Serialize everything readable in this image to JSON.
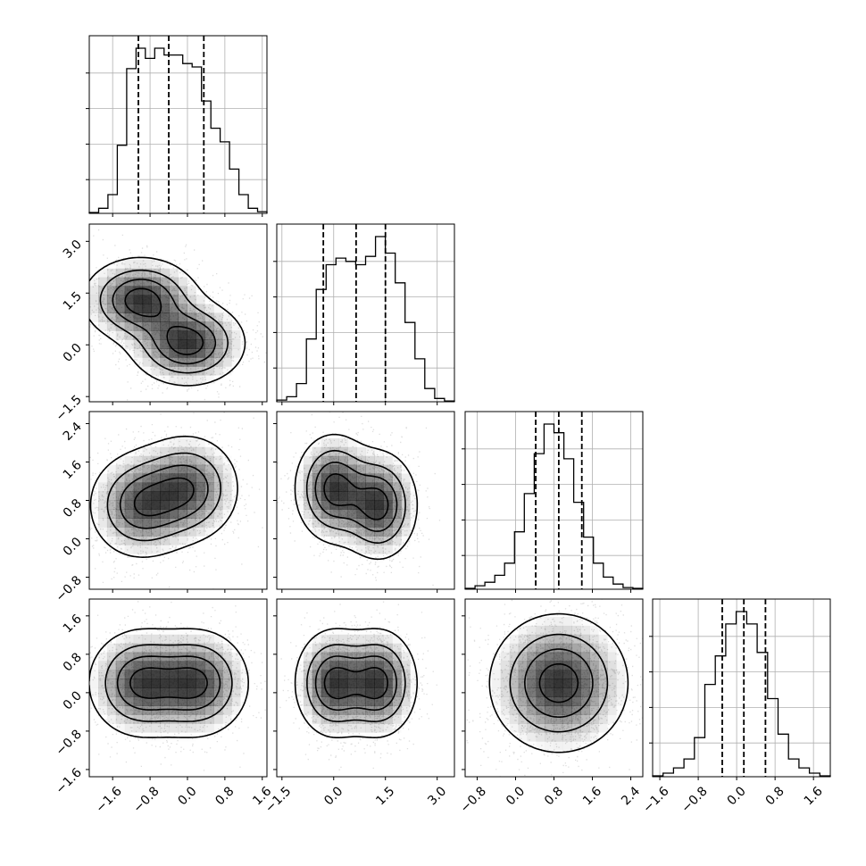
{
  "chart_data": {
    "type": "corner",
    "title": "",
    "n_params": 4,
    "grid": true,
    "params": [
      {
        "name": "",
        "range": [
          -2.1,
          1.7
        ],
        "ticks": [
          -1.6,
          -0.8,
          0.0,
          0.8,
          1.6
        ],
        "tick_labels": [
          "−1.6",
          "−0.8",
          "0.0",
          "0.8",
          "1.6"
        ],
        "quantiles": [
          -1.05,
          -0.4,
          0.35
        ]
      },
      {
        "name": "",
        "range": [
          -1.65,
          3.5
        ],
        "ticks": [
          -1.5,
          0.0,
          1.5,
          3.0
        ],
        "tick_labels": [
          "−1.5",
          "0.0",
          "1.5",
          "3.0"
        ],
        "quantiles": [
          -0.3,
          0.65,
          1.5
        ]
      },
      {
        "name": "",
        "range": [
          -1.05,
          2.65
        ],
        "ticks": [
          -0.8,
          0.0,
          0.8,
          1.6,
          2.4
        ],
        "tick_labels": [
          "−0.8",
          "0.0",
          "0.8",
          "1.6",
          "2.4"
        ],
        "quantiles": [
          0.42,
          0.9,
          1.38
        ]
      },
      {
        "name": "",
        "range": [
          -1.75,
          1.95
        ],
        "ticks": [
          -1.6,
          -0.8,
          0.0,
          0.8,
          1.6
        ],
        "tick_labels": [
          "−1.6",
          "−0.8",
          "0.0",
          "0.8",
          "1.6"
        ],
        "quantiles": [
          -0.3,
          0.15,
          0.6
        ]
      }
    ],
    "histograms": [
      {
        "param": 0,
        "values": [
          0.5,
          3,
          11,
          40,
          85,
          97,
          91,
          97,
          93,
          93,
          88,
          86,
          66,
          50,
          42,
          26,
          11,
          3,
          1
        ]
      },
      {
        "param": 1,
        "values": [
          1,
          3,
          11,
          38,
          68,
          83,
          87,
          85,
          83,
          88,
          100,
          90,
          72,
          48,
          26,
          8,
          2,
          0.5
        ]
      },
      {
        "param": 2,
        "values": [
          0.5,
          2,
          4,
          8,
          15,
          33,
          55,
          78,
          95,
          90,
          75,
          50,
          30,
          15,
          7,
          3,
          1,
          0.5
        ]
      },
      {
        "param": 3,
        "values": [
          0.5,
          2,
          5,
          10,
          22,
          52,
          68,
          86,
          93,
          86,
          70,
          44,
          24,
          10,
          5,
          2,
          0.5
        ]
      }
    ],
    "pair_peaks": [
      {
        "x_param": 0,
        "y_param": 1,
        "peaks": [
          [
            -1.0,
            1.3,
            0.6
          ],
          [
            0.0,
            0.05,
            0.6
          ]
        ]
      },
      {
        "x_param": 0,
        "y_param": 2,
        "peaks": [
          [
            -1.0,
            0.7,
            0.55
          ],
          [
            0.0,
            1.05,
            0.55
          ]
        ]
      },
      {
        "x_param": 1,
        "y_param": 2,
        "peaks": [
          [
            0.0,
            1.05,
            0.55
          ],
          [
            1.3,
            0.7,
            0.55
          ]
        ]
      },
      {
        "x_param": 0,
        "y_param": 3,
        "peaks": [
          [
            -1.0,
            0.2,
            0.55
          ],
          [
            0.2,
            0.2,
            0.55
          ]
        ]
      },
      {
        "x_param": 1,
        "y_param": 3,
        "peaks": [
          [
            0.0,
            0.2,
            0.55
          ],
          [
            1.3,
            0.2,
            0.55
          ]
        ]
      },
      {
        "x_param": 2,
        "y_param": 3,
        "peaks": [
          [
            0.9,
            0.2,
            0.7
          ]
        ]
      }
    ],
    "colors": {
      "line": "#000000",
      "points": "#888888",
      "grid": "#b0b0b0",
      "density": "#000000"
    }
  }
}
